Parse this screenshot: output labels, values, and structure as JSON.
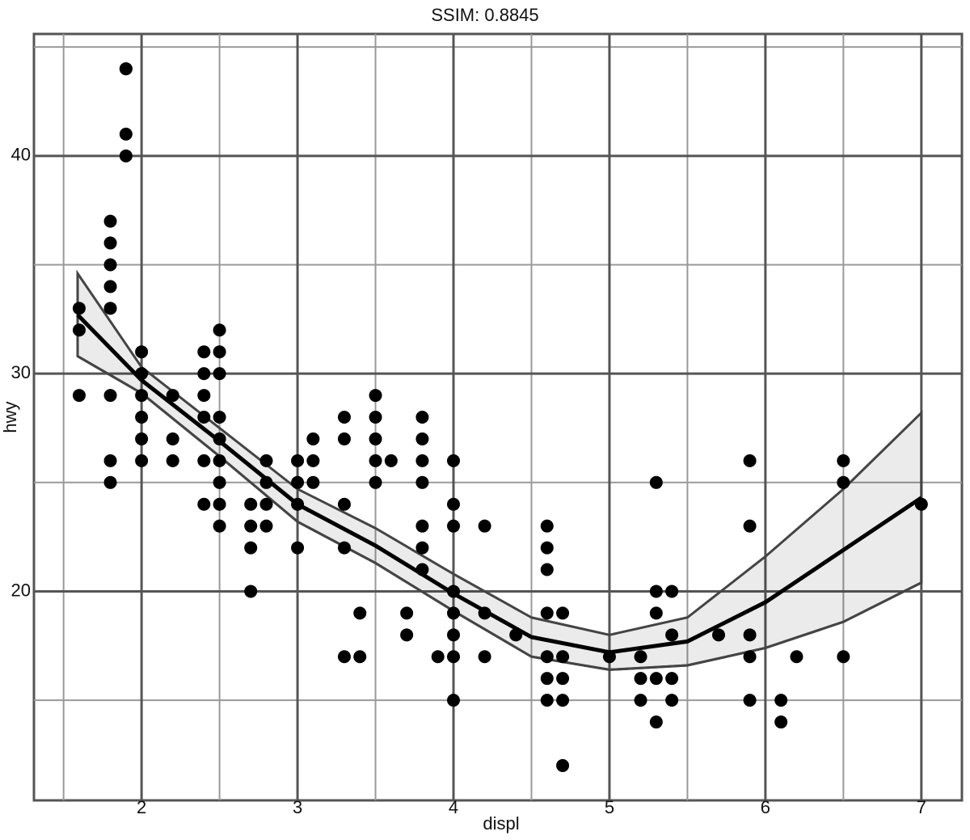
{
  "chart_data": {
    "type": "scatter",
    "title": "SSIM: 0.8845",
    "xlabel": "displ",
    "ylabel": "hwy",
    "xlim": [
      1.31,
      7.26
    ],
    "ylim": [
      10.4,
      45.6
    ],
    "xticks": [
      2,
      3,
      4,
      5,
      6,
      7
    ],
    "yticks": [
      20,
      30,
      40
    ],
    "grid": true,
    "color": "#000000",
    "points": [
      [
        1.6,
        33
      ],
      [
        1.6,
        32
      ],
      [
        1.6,
        29
      ],
      [
        1.8,
        37
      ],
      [
        1.8,
        36
      ],
      [
        1.8,
        35
      ],
      [
        1.8,
        34
      ],
      [
        1.8,
        33
      ],
      [
        1.8,
        29
      ],
      [
        1.8,
        26
      ],
      [
        1.8,
        25
      ],
      [
        1.9,
        44
      ],
      [
        1.9,
        44
      ],
      [
        1.9,
        41
      ],
      [
        1.9,
        40
      ],
      [
        2.0,
        31
      ],
      [
        2.0,
        30
      ],
      [
        2.0,
        29
      ],
      [
        2.0,
        28
      ],
      [
        2.0,
        27
      ],
      [
        2.0,
        26
      ],
      [
        2.2,
        29
      ],
      [
        2.2,
        27
      ],
      [
        2.2,
        26
      ],
      [
        2.4,
        31
      ],
      [
        2.4,
        30
      ],
      [
        2.4,
        29
      ],
      [
        2.4,
        28
      ],
      [
        2.4,
        26
      ],
      [
        2.4,
        24
      ],
      [
        2.5,
        32
      ],
      [
        2.5,
        31
      ],
      [
        2.5,
        30
      ],
      [
        2.5,
        28
      ],
      [
        2.5,
        27
      ],
      [
        2.5,
        26
      ],
      [
        2.5,
        25
      ],
      [
        2.5,
        24
      ],
      [
        2.5,
        23
      ],
      [
        2.7,
        24
      ],
      [
        2.7,
        23
      ],
      [
        2.7,
        22
      ],
      [
        2.7,
        20
      ],
      [
        2.8,
        26
      ],
      [
        2.8,
        25
      ],
      [
        2.8,
        24
      ],
      [
        2.8,
        23
      ],
      [
        3.0,
        26
      ],
      [
        3.0,
        25
      ],
      [
        3.0,
        24
      ],
      [
        3.0,
        22
      ],
      [
        3.1,
        27
      ],
      [
        3.1,
        26
      ],
      [
        3.1,
        25
      ],
      [
        3.3,
        28
      ],
      [
        3.3,
        27
      ],
      [
        3.3,
        24
      ],
      [
        3.3,
        22
      ],
      [
        3.3,
        17
      ],
      [
        3.4,
        19
      ],
      [
        3.4,
        17
      ],
      [
        3.5,
        29
      ],
      [
        3.5,
        28
      ],
      [
        3.5,
        27
      ],
      [
        3.5,
        26
      ],
      [
        3.5,
        25
      ],
      [
        3.6,
        26
      ],
      [
        3.7,
        19
      ],
      [
        3.7,
        18
      ],
      [
        3.8,
        28
      ],
      [
        3.8,
        27
      ],
      [
        3.8,
        26
      ],
      [
        3.8,
        25
      ],
      [
        3.8,
        23
      ],
      [
        3.8,
        22
      ],
      [
        3.8,
        21
      ],
      [
        3.9,
        17
      ],
      [
        4.0,
        26
      ],
      [
        4.0,
        24
      ],
      [
        4.0,
        23
      ],
      [
        4.0,
        20
      ],
      [
        4.0,
        19
      ],
      [
        4.0,
        18
      ],
      [
        4.0,
        17
      ],
      [
        4.0,
        15
      ],
      [
        4.2,
        23
      ],
      [
        4.2,
        19
      ],
      [
        4.2,
        17
      ],
      [
        4.4,
        18
      ],
      [
        4.6,
        23
      ],
      [
        4.6,
        22
      ],
      [
        4.6,
        21
      ],
      [
        4.6,
        19
      ],
      [
        4.6,
        17
      ],
      [
        4.6,
        16
      ],
      [
        4.6,
        15
      ],
      [
        4.7,
        19
      ],
      [
        4.7,
        17
      ],
      [
        4.7,
        16
      ],
      [
        4.7,
        15
      ],
      [
        4.7,
        12
      ],
      [
        5.0,
        17
      ],
      [
        5.2,
        17
      ],
      [
        5.2,
        16
      ],
      [
        5.2,
        15
      ],
      [
        5.3,
        25
      ],
      [
        5.3,
        20
      ],
      [
        5.3,
        19
      ],
      [
        5.3,
        16
      ],
      [
        5.3,
        14
      ],
      [
        5.4,
        20
      ],
      [
        5.4,
        18
      ],
      [
        5.4,
        16
      ],
      [
        5.4,
        15
      ],
      [
        5.7,
        18
      ],
      [
        5.9,
        26
      ],
      [
        5.9,
        23
      ],
      [
        5.9,
        18
      ],
      [
        5.9,
        17
      ],
      [
        5.9,
        15
      ],
      [
        6.1,
        15
      ],
      [
        6.1,
        14
      ],
      [
        6.2,
        17
      ],
      [
        6.5,
        26
      ],
      [
        6.5,
        25
      ],
      [
        6.5,
        17
      ],
      [
        7.0,
        24
      ]
    ],
    "smooth": {
      "x": [
        1.59,
        2,
        2.5,
        3,
        3.5,
        4,
        4.5,
        5,
        5.5,
        6,
        6.5,
        7
      ],
      "values": [
        32.7,
        29.7,
        26.9,
        24.0,
        22.1,
        19.9,
        17.9,
        17.2,
        17.7,
        19.5,
        21.9,
        24.3
      ],
      "upper": [
        34.6,
        30.3,
        27.5,
        24.7,
        22.9,
        20.8,
        18.8,
        18.0,
        18.8,
        21.6,
        24.7,
        28.2
      ],
      "lower": [
        30.8,
        29.1,
        26.2,
        23.2,
        21.3,
        19.1,
        17.0,
        16.4,
        16.6,
        17.4,
        18.6,
        20.4
      ]
    }
  }
}
